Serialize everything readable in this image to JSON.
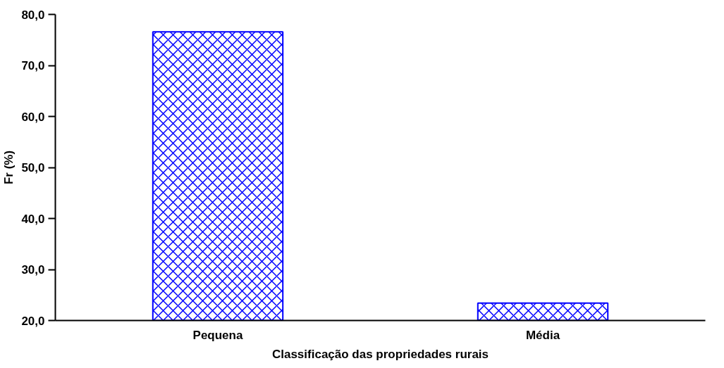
{
  "chart_data": {
    "type": "bar",
    "xlabel": "Classificação das propriedades rurais",
    "ylabel": "Fr (%)",
    "categories": [
      "Pequena",
      "Média"
    ],
    "series": [
      {
        "color": "#0000ff",
        "values": [
          76.6,
          23.4
        ]
      }
    ],
    "ylim": [
      20,
      80
    ],
    "yticks": [
      {
        "value": 20,
        "label": "20,0"
      },
      {
        "value": 30,
        "label": "30,0"
      },
      {
        "value": 40,
        "label": "40,0"
      },
      {
        "value": 50,
        "label": "50,0"
      },
      {
        "value": 60,
        "label": "60,0"
      },
      {
        "value": 70,
        "label": "70,0"
      },
      {
        "value": 80,
        "label": "80,0"
      }
    ],
    "grid": false
  }
}
